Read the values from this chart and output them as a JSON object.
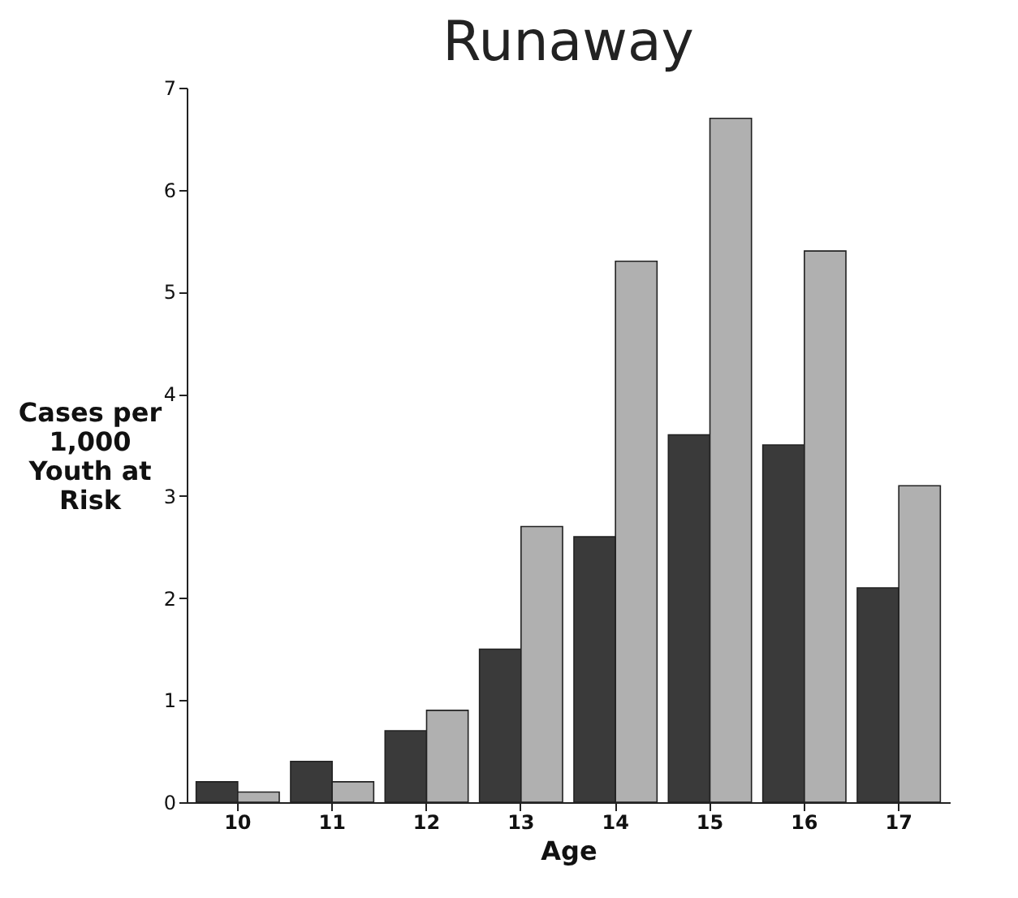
{
  "chart_data": {
    "type": "bar",
    "title": "Runaway",
    "xlabel": "Age",
    "ylabel": "Cases per 1,000 Youth at Risk",
    "categories": [
      "10",
      "11",
      "12",
      "13",
      "14",
      "15",
      "16",
      "17"
    ],
    "series": [
      {
        "color": "#3a3a3a",
        "values": [
          0.2,
          0.4,
          0.7,
          1.5,
          2.6,
          3.6,
          3.5,
          2.1
        ]
      },
      {
        "color": "#b0b0b0",
        "values": [
          0.1,
          0.2,
          0.9,
          2.7,
          5.3,
          6.7,
          5.4,
          3.1
        ]
      }
    ],
    "ylim": [
      0,
      7
    ],
    "yticks": [
      0,
      1,
      2,
      3,
      4,
      5,
      6,
      7
    ],
    "grid": false,
    "legend": false
  }
}
